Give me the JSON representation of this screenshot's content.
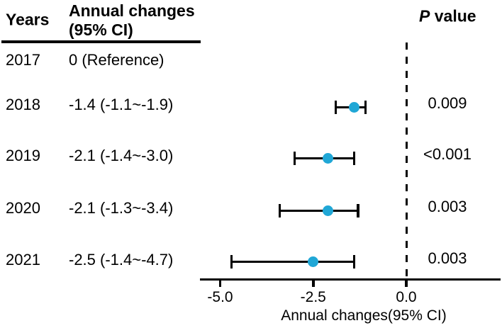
{
  "table": {
    "headers": {
      "years": "Years",
      "annual_line1": "Annual changes",
      "annual_line2": "(95% CI)",
      "p_italic": "P",
      "p_rest": " value"
    },
    "rows": [
      {
        "year": "2017",
        "ci": "0 (Reference)",
        "p": null
      },
      {
        "year": "2018",
        "ci": "-1.4 (-1.1~-1.9)",
        "p": "0.009"
      },
      {
        "year": "2019",
        "ci": "-2.1 (-1.4~-3.0)",
        "p": "<0.001"
      },
      {
        "year": "2020",
        "ci": "-2.1 (-1.3~-3.4)",
        "p": "0.003"
      },
      {
        "year": "2021",
        "ci": "-2.5 (-1.4~-4.7)",
        "p": "0.003"
      }
    ]
  },
  "chart_data": {
    "type": "scatter",
    "subtype": "forest-plot",
    "title": "",
    "xlabel": "Annual changes(95% CI)",
    "ylabel": "",
    "xlim": [
      -5.55,
      2.55
    ],
    "x_ticks": [
      -5.0,
      -2.5,
      0.0
    ],
    "x_tick_labels": [
      "-5.0",
      "-2.5",
      "0.0"
    ],
    "reference_line_x": 0.0,
    "reference_line_style": "dashed",
    "grid": false,
    "series": [
      {
        "year": "2017",
        "estimate": 0,
        "ci_low": null,
        "ci_high": null,
        "reference": true,
        "p": null
      },
      {
        "year": "2018",
        "estimate": -1.4,
        "ci_low": -1.9,
        "ci_high": -1.1,
        "reference": false,
        "p": "0.009"
      },
      {
        "year": "2019",
        "estimate": -2.1,
        "ci_low": -3.0,
        "ci_high": -1.4,
        "reference": false,
        "p": "<0.001"
      },
      {
        "year": "2020",
        "estimate": -2.1,
        "ci_low": -3.4,
        "ci_high": -1.3,
        "reference": false,
        "p": "0.003"
      },
      {
        "year": "2021",
        "estimate": -2.5,
        "ci_low": -4.7,
        "ci_high": -1.4,
        "reference": false,
        "p": "0.003"
      }
    ]
  },
  "colors": {
    "marker": "#20a7d6",
    "line": "#000000",
    "text": "#000000",
    "background": "#ffffff"
  }
}
